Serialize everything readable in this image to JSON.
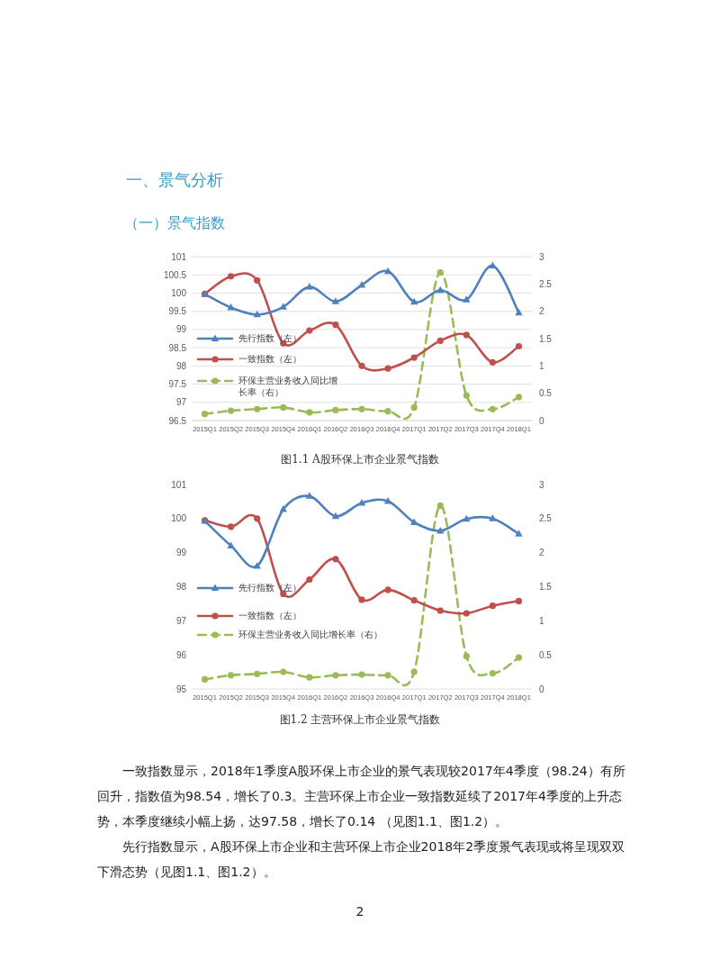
{
  "chart_data": [
    {
      "type": "line",
      "title": "图1.1 A股环保上市企业景气指数",
      "annotations": [
        "一、景气分析",
        "（一）景气指数"
      ],
      "categories": [
        "2015Q1",
        "2015Q2",
        "2015Q3",
        "2015Q4",
        "2016Q1",
        "2016Q2",
        "2016Q3",
        "2016Q4",
        "2017Q1",
        "2017Q2",
        "2017Q3",
        "2017Q4",
        "2018Q1"
      ],
      "ylim": [
        96.5,
        101
      ],
      "yticks": [
        96.5,
        97,
        97.5,
        98,
        98.5,
        99,
        99.5,
        100,
        100.5,
        101
      ],
      "y2lim": [
        0,
        3
      ],
      "y2ticks": [
        0,
        0.5,
        1,
        1.5,
        2,
        2.5,
        3
      ],
      "grid": "y",
      "legend": "left",
      "series": [
        {
          "name": "先行指数（左）",
          "color": "#4f81bd",
          "marker": "triangle",
          "line_style": "solid",
          "values": [
            99.97,
            99.6,
            99.41,
            99.62,
            100.17,
            99.77,
            100.22,
            100.6,
            99.76,
            100.08,
            99.82,
            100.75,
            99.46
          ]
        },
        {
          "name": "一致指数（左）",
          "color": "#c0504d",
          "marker": "circle",
          "line_style": "solid",
          "values": [
            99.98,
            100.46,
            100.35,
            98.62,
            98.97,
            99.13,
            98.0,
            97.93,
            98.23,
            98.69,
            98.85,
            98.1,
            98.54
          ]
        },
        {
          "name": "环保主营业务收入同比增长率（右）",
          "color": "#9bbb59",
          "marker": "circle",
          "line_style": "dashed",
          "axis": "y2",
          "values": [
            0.12,
            0.18,
            0.21,
            0.24,
            0.15,
            0.19,
            0.21,
            0.17,
            0.24,
            2.71,
            0.46,
            0.21,
            0.43
          ]
        }
      ]
    },
    {
      "type": "line",
      "title": "图1.2 主营环保上市企业景气指数",
      "annotations": [
        "一致指数显示，2018年1季度A股环保上市企业的景气表现较2017年4季度（98.24）有所回升，指数值为98.54，增长了0.3。主营环保上市企业一致指数延续了2017年4季度的上升态势，本季度继续小幅上扬，达97.58，增长了0.14 （见图1.1、图1.2）。",
        "先行指数显示，A股环保上市企业和主营环保上市企业2018年2季度景气表现或将呈现双双下滑态势（见图1.1、图1.2）。",
        "2"
      ],
      "categories": [
        "2015Q1",
        "2015Q2",
        "2015Q3",
        "2015Q4",
        "2016Q1",
        "2016Q2",
        "2016Q3",
        "2016Q4",
        "2017Q1",
        "2017Q2",
        "2017Q3",
        "2017Q4",
        "2018Q1"
      ],
      "ylim": [
        95,
        101
      ],
      "yticks": [
        95,
        96,
        97,
        98,
        99,
        100,
        101
      ],
      "y2lim": [
        0,
        3
      ],
      "y2ticks": [
        0,
        0.5,
        1,
        1.5,
        2,
        2.5,
        3
      ],
      "legend": "left",
      "series": [
        {
          "name": "先行指数（左）",
          "color": "#4f81bd",
          "marker": "triangle",
          "line_style": "solid",
          "values": [
            99.93,
            99.2,
            98.61,
            100.27,
            100.66,
            100.07,
            100.46,
            100.51,
            99.89,
            99.64,
            99.99,
            100.0,
            99.55
          ]
        },
        {
          "name": "一致指数（左）",
          "color": "#c0504d",
          "marker": "circle",
          "line_style": "solid",
          "values": [
            99.95,
            99.76,
            100.0,
            97.79,
            98.21,
            98.81,
            97.62,
            97.91,
            97.6,
            97.3,
            97.22,
            97.44,
            97.58
          ]
        },
        {
          "name": "环保主营业务收入同比增长率（右）",
          "color": "#9bbb59",
          "marker": "circle",
          "line_style": "dashed",
          "axis": "y2",
          "values": [
            0.14,
            0.2,
            0.22,
            0.25,
            0.17,
            0.2,
            0.21,
            0.2,
            0.25,
            2.69,
            0.48,
            0.23,
            0.46
          ]
        }
      ]
    }
  ]
}
